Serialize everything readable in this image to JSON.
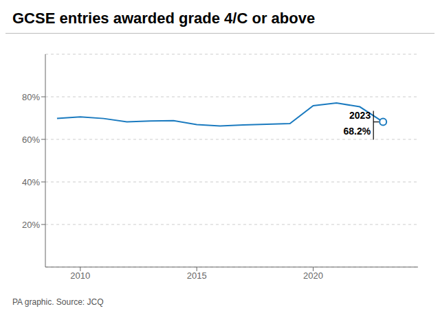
{
  "chart_data": {
    "type": "line",
    "title": "GCSE entries awarded grade 4/C or above",
    "source": "PA graphic. Source: JCQ",
    "x": [
      2009,
      2010,
      2011,
      2012,
      2013,
      2014,
      2015,
      2016,
      2017,
      2018,
      2019,
      2020,
      2021,
      2022,
      2023
    ],
    "values": [
      69.8,
      70.6,
      69.8,
      68.2,
      68.6,
      68.8,
      66.9,
      66.3,
      66.8,
      67.1,
      67.4,
      75.8,
      77.1,
      75.3,
      68.2
    ],
    "color": "#1a7abf",
    "annotations": [
      "2023",
      "68.2%"
    ],
    "xlim": [
      2008.5,
      2024.5
    ],
    "xticks": [
      2010,
      2015,
      2020
    ],
    "ylim": [
      0,
      100
    ],
    "yticks": [
      {
        "value": 20,
        "label": "20%"
      },
      {
        "value": 40,
        "label": "40%"
      },
      {
        "value": 60,
        "label": "60%"
      },
      {
        "value": 80,
        "label": "80%"
      }
    ],
    "grid": true
  }
}
